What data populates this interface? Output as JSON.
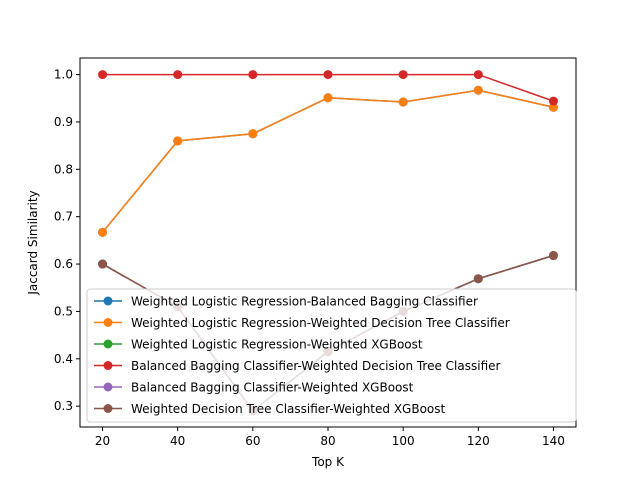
{
  "chart_data": {
    "type": "line",
    "title": "",
    "xlabel": "Top K",
    "ylabel": "Jaccard Similarity",
    "x": [
      20,
      40,
      60,
      80,
      100,
      120,
      140
    ],
    "xlim": [
      14,
      146
    ],
    "ylim": [
      0.256,
      1.035
    ],
    "xticks": [
      20,
      40,
      60,
      80,
      100,
      120,
      140
    ],
    "yticks": [
      0.3,
      0.4,
      0.5,
      0.6,
      0.7,
      0.8,
      0.9,
      1.0
    ],
    "ytick_labels": [
      "0.3",
      "0.4",
      "0.5",
      "0.6",
      "0.7",
      "0.8",
      "0.9",
      "1.0"
    ],
    "grid": false,
    "legend_position": "lower-left",
    "series": [
      {
        "name": "Weighted Logistic Regression-Balanced Bagging Classifier",
        "color": "#1f77b4",
        "values": [
          0.667,
          0.86,
          0.875,
          0.951,
          0.942,
          0.967,
          0.931
        ]
      },
      {
        "name": "Weighted Logistic Regression-Weighted Decision Tree Classifier",
        "color": "#ff7f0e",
        "values": [
          0.667,
          0.86,
          0.875,
          0.951,
          0.942,
          0.967,
          0.931
        ]
      },
      {
        "name": "Weighted Logistic Regression-Weighted XGBoost",
        "color": "#2ca02c",
        "values": [
          0.6,
          0.51,
          0.29,
          0.415,
          0.5,
          0.569,
          0.618
        ]
      },
      {
        "name": "Balanced Bagging Classifier-Weighted Decision Tree Classifier",
        "color": "#d62728",
        "values": [
          1.0,
          1.0,
          1.0,
          1.0,
          1.0,
          1.0,
          0.944
        ]
      },
      {
        "name": "Balanced Bagging Classifier-Weighted XGBoost",
        "color": "#9467bd",
        "values": [
          0.6,
          0.51,
          0.29,
          0.415,
          0.5,
          0.569,
          0.618
        ]
      },
      {
        "name": "Weighted Decision Tree Classifier-Weighted XGBoost",
        "color": "#8c564b",
        "values": [
          0.6,
          0.51,
          0.29,
          0.415,
          0.5,
          0.569,
          0.618
        ]
      }
    ]
  }
}
